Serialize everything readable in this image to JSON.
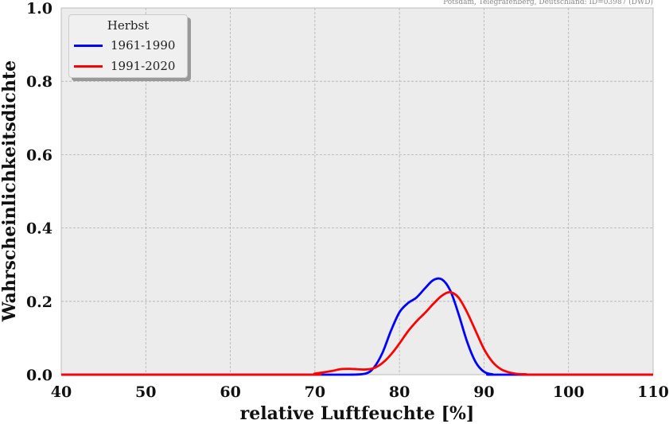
{
  "source_note": "Potsdam, Telegrafenberg, Deutschland: ID=03987 (DWD)",
  "chart_data": {
    "type": "line",
    "title": "",
    "xlabel": "relative Luftfeuchte [%]",
    "ylabel": "Wahrscheinlichkeitsdichte",
    "xlim": [
      40,
      110
    ],
    "ylim": [
      0,
      1.0
    ],
    "xticks": [
      40,
      50,
      60,
      70,
      80,
      90,
      100,
      110
    ],
    "yticks": [
      0.0,
      0.2,
      0.4,
      0.6,
      0.8,
      1.0
    ],
    "ytick_labels": [
      "0.0",
      "0.2",
      "0.4",
      "0.6",
      "0.8",
      "1.0"
    ],
    "grid": true,
    "background": "#ececec",
    "legend": {
      "title": "Herbst",
      "placement": "top-left"
    },
    "series": [
      {
        "name": "1961-1990",
        "color": "#0000ff",
        "x": [
          40,
          70,
          74,
          76,
          77,
          78,
          79,
          80,
          81,
          82,
          83,
          84,
          85,
          86,
          87,
          88,
          89,
          90,
          91,
          92,
          110
        ],
        "y": [
          0,
          0,
          0,
          0.003,
          0.02,
          0.06,
          0.12,
          0.17,
          0.195,
          0.21,
          0.235,
          0.258,
          0.26,
          0.23,
          0.165,
          0.09,
          0.035,
          0.008,
          0.001,
          0,
          0
        ]
      },
      {
        "name": "1991-2020",
        "color": "#ff0000",
        "x": [
          40,
          68,
          70,
          72,
          73,
          74,
          75,
          76,
          77,
          78,
          79,
          80,
          81,
          82,
          83,
          84,
          85,
          86,
          87,
          88,
          89,
          90,
          91,
          92,
          93,
          94,
          95,
          96,
          110
        ],
        "y": [
          0,
          0,
          0.003,
          0.01,
          0.015,
          0.016,
          0.015,
          0.014,
          0.018,
          0.032,
          0.055,
          0.085,
          0.118,
          0.145,
          0.168,
          0.193,
          0.215,
          0.225,
          0.21,
          0.17,
          0.12,
          0.07,
          0.035,
          0.015,
          0.006,
          0.002,
          0.001,
          0,
          0
        ]
      }
    ]
  }
}
